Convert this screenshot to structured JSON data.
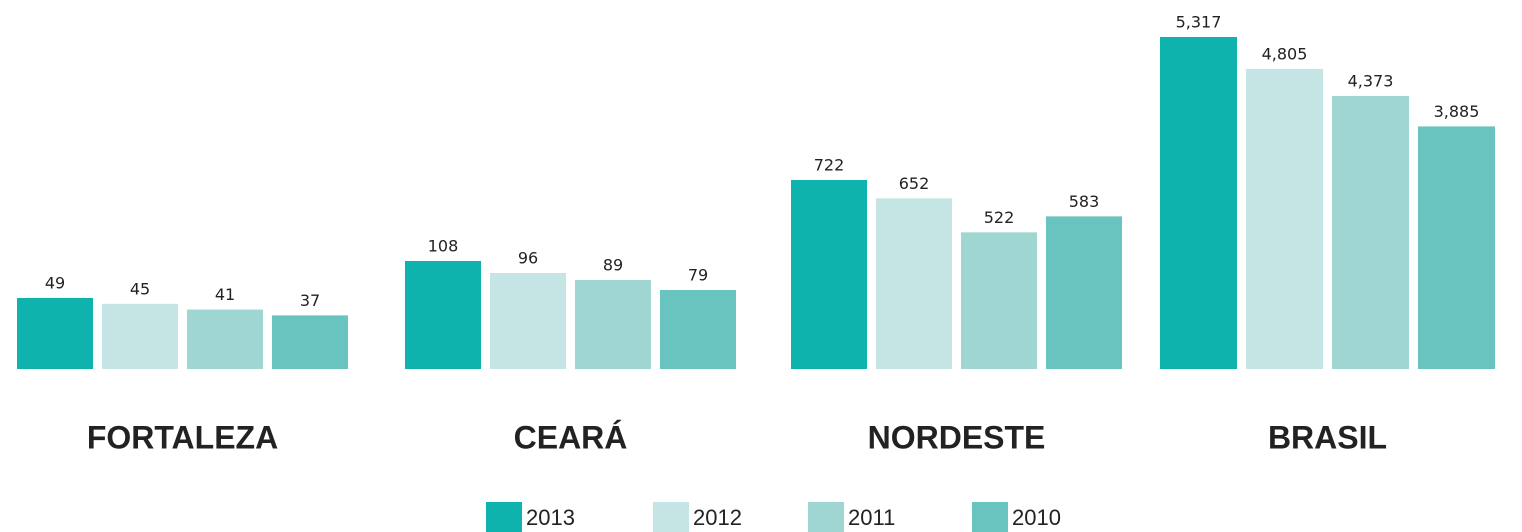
{
  "chart_data": {
    "type": "bar",
    "categories": [
      "FORTALEZA",
      "CEARÁ",
      "NORDESTE",
      "BRASIL"
    ],
    "series": [
      {
        "name": "2013",
        "color": "#0fb3ad",
        "values": [
          49,
          108,
          722,
          5317
        ],
        "value_labels": [
          "49",
          "108",
          "722",
          "5,317"
        ]
      },
      {
        "name": "2012",
        "color": "#c4e5e3",
        "values": [
          45,
          96,
          652,
          4805
        ],
        "value_labels": [
          "45",
          "96",
          "652",
          "4,805"
        ]
      },
      {
        "name": "2011",
        "color": "#9fd6d2",
        "values": [
          41,
          89,
          522,
          4373
        ],
        "value_labels": [
          "41",
          "89",
          "522",
          "4,373"
        ]
      },
      {
        "name": "2010",
        "color": "#69c3bf",
        "values": [
          37,
          79,
          583,
          3885
        ],
        "value_labels": [
          "37",
          "79",
          "583",
          "3,885"
        ]
      }
    ]
  }
}
